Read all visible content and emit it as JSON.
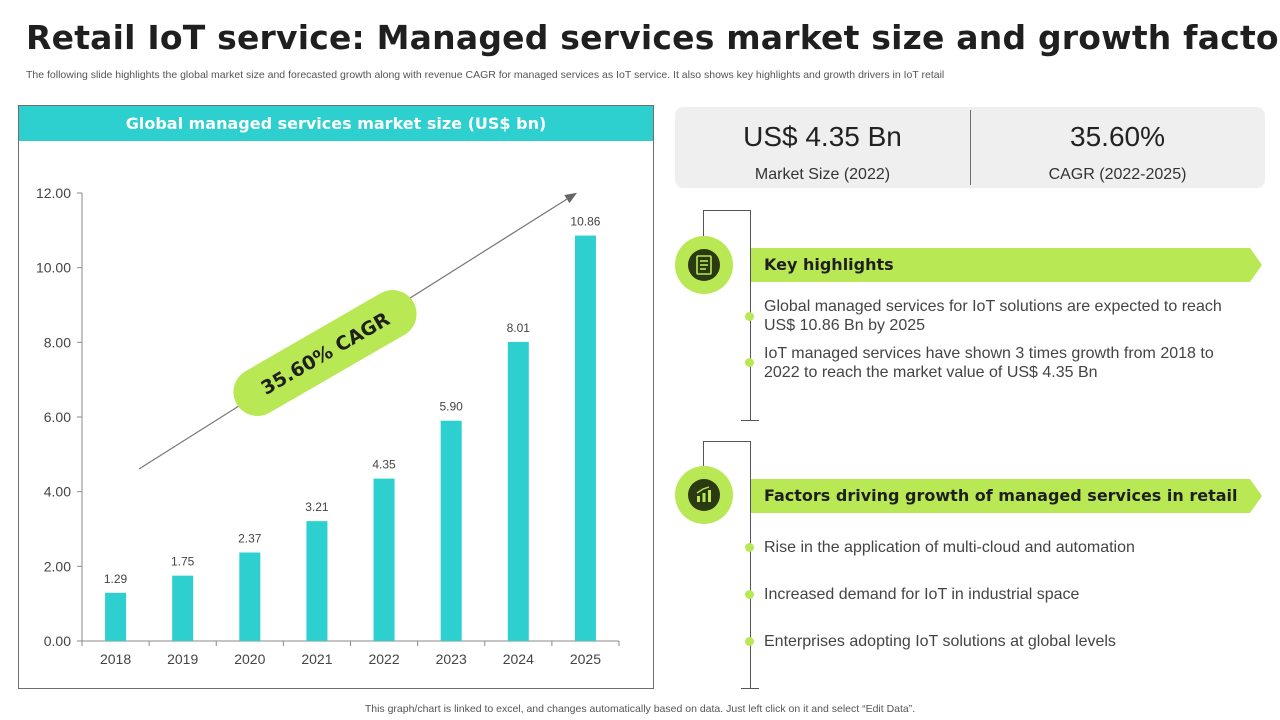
{
  "header": {
    "title": "Retail IoT service: Managed services market size and growth factors",
    "subtitle": "The following slide highlights the global market size and forecasted growth along with revenue CAGR for managed services as IoT service. It also shows key highlights and growth drivers in IoT retail"
  },
  "footer": {
    "note": "This graph/chart is linked to excel, and changes automatically based on data. Just left click on it and select “Edit Data”."
  },
  "colors": {
    "accent_teal": "#2dcfcf",
    "accent_green": "#b8e854",
    "icon_dark": "#2b3a12"
  },
  "kpis": [
    {
      "value": "US$ 4.35 Bn",
      "label": "Market Size (2022)"
    },
    {
      "value": "35.60%",
      "label": "CAGR (2022-2025)"
    }
  ],
  "sections": {
    "highlights": {
      "icon": "document-list-icon",
      "title": "Key highlights",
      "bullets": [
        "Global managed services for IoT solutions are expected to reach US$ 10.86 Bn by 2025",
        "IoT managed services have shown 3 times growth from 2018 to 2022 to reach the market value of US$ 4.35 Bn"
      ]
    },
    "drivers": {
      "icon": "growth-chart-icon",
      "title": "Factors driving growth of managed services in retail",
      "bullets": [
        "Rise in the application of multi-cloud  and automation",
        "Increased demand for IoT in industrial space",
        "Enterprises adopting IoT solutions at global levels"
      ]
    }
  },
  "chart_data": {
    "type": "bar",
    "title": "Global managed services market size (US$ bn)",
    "categories": [
      "2018",
      "2019",
      "2020",
      "2021",
      "2022",
      "2023",
      "2024",
      "2025"
    ],
    "values": [
      1.29,
      1.75,
      2.37,
      3.21,
      4.35,
      5.9,
      8.01,
      10.86
    ],
    "value_labels": [
      "1.29",
      "1.75",
      "2.37",
      "3.21",
      "4.35",
      "5.90",
      "8.01",
      "10.86"
    ],
    "y_ticks": [
      "0.00",
      "2.00",
      "4.00",
      "6.00",
      "8.00",
      "10.00",
      "12.00"
    ],
    "ylim": [
      0,
      12
    ],
    "xlabel": "",
    "ylabel": "",
    "grid": false,
    "annotation": "35.60% CAGR",
    "bar_color": "#2dcfcf"
  }
}
